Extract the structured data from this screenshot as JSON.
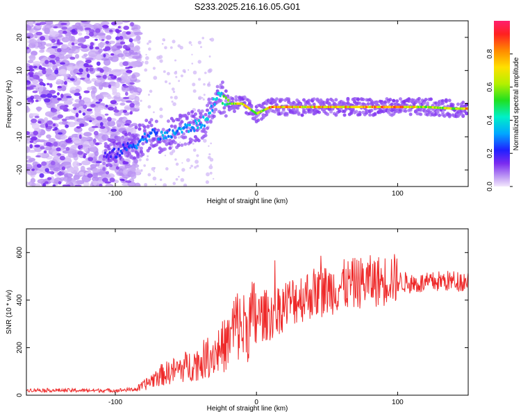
{
  "title": "S233.2025.216.16.05.G01",
  "colors": {
    "snr_line": "#ee2a2a",
    "spectrum_noise": "#b890f0",
    "spectrum_core": "#6a1fd8"
  },
  "chart_data": [
    {
      "type": "heatmap",
      "xlabel": "Height of straight line (km)",
      "ylabel": "Frequency (Hz)",
      "xlim": [
        -163,
        150
      ],
      "ylim": [
        -25,
        25
      ],
      "x_ticks": [
        -100,
        0,
        100
      ],
      "y_ticks": [
        -20,
        -10,
        0,
        10,
        20
      ],
      "colorbar": {
        "label": "Normalized spectral amplitude",
        "range": [
          0,
          1
        ],
        "ticks": [
          0.0,
          0.2,
          0.4,
          0.6,
          0.8
        ],
        "tick_labels": [
          "0.0",
          "0.2",
          "0.4",
          "0.6",
          "0.8"
        ]
      },
      "ridge": {
        "x": [
          -105,
          -95,
          -85,
          -75,
          -65,
          -55,
          -45,
          -35,
          -28,
          -20,
          -10,
          0,
          10,
          20,
          40,
          60,
          80,
          100,
          120,
          140,
          150
        ],
        "freq": [
          -16,
          -14,
          -12,
          -9,
          -10,
          -8,
          -7,
          -5,
          3,
          0,
          0,
          -3,
          -1,
          -1,
          -1,
          -1,
          -1,
          -1,
          -1,
          -1.5,
          -1.5
        ],
        "amplitude": [
          0.2,
          0.25,
          0.3,
          0.3,
          0.35,
          0.35,
          0.35,
          0.4,
          0.4,
          0.6,
          0.8,
          0.6,
          0.85,
          0.85,
          0.85,
          0.85,
          0.85,
          0.9,
          0.7,
          0.7,
          0.9
        ]
      }
    },
    {
      "type": "line",
      "xlabel": "Height of straight line (km)",
      "ylabel": "SNR (10 * v/v)",
      "xlim": [
        -163,
        150
      ],
      "ylim": [
        0,
        700
      ],
      "x_ticks": [
        -100,
        0,
        100
      ],
      "y_ticks": [
        0,
        200,
        400,
        600
      ],
      "series": [
        {
          "x": [
            -163,
            -130,
            -100,
            -85,
            -80,
            -70,
            -60,
            -50,
            -40,
            -30,
            -20,
            -15,
            -10,
            0,
            10,
            20,
            30,
            40,
            50,
            60,
            70,
            80,
            90,
            95,
            100,
            110,
            120,
            130,
            140,
            150
          ],
          "values": [
            22,
            20,
            20,
            25,
            40,
            80,
            100,
            120,
            140,
            180,
            220,
            300,
            280,
            330,
            340,
            380,
            410,
            430,
            440,
            460,
            470,
            480,
            480,
            500,
            480,
            470,
            470,
            480,
            480,
            480
          ]
        }
      ]
    }
  ]
}
